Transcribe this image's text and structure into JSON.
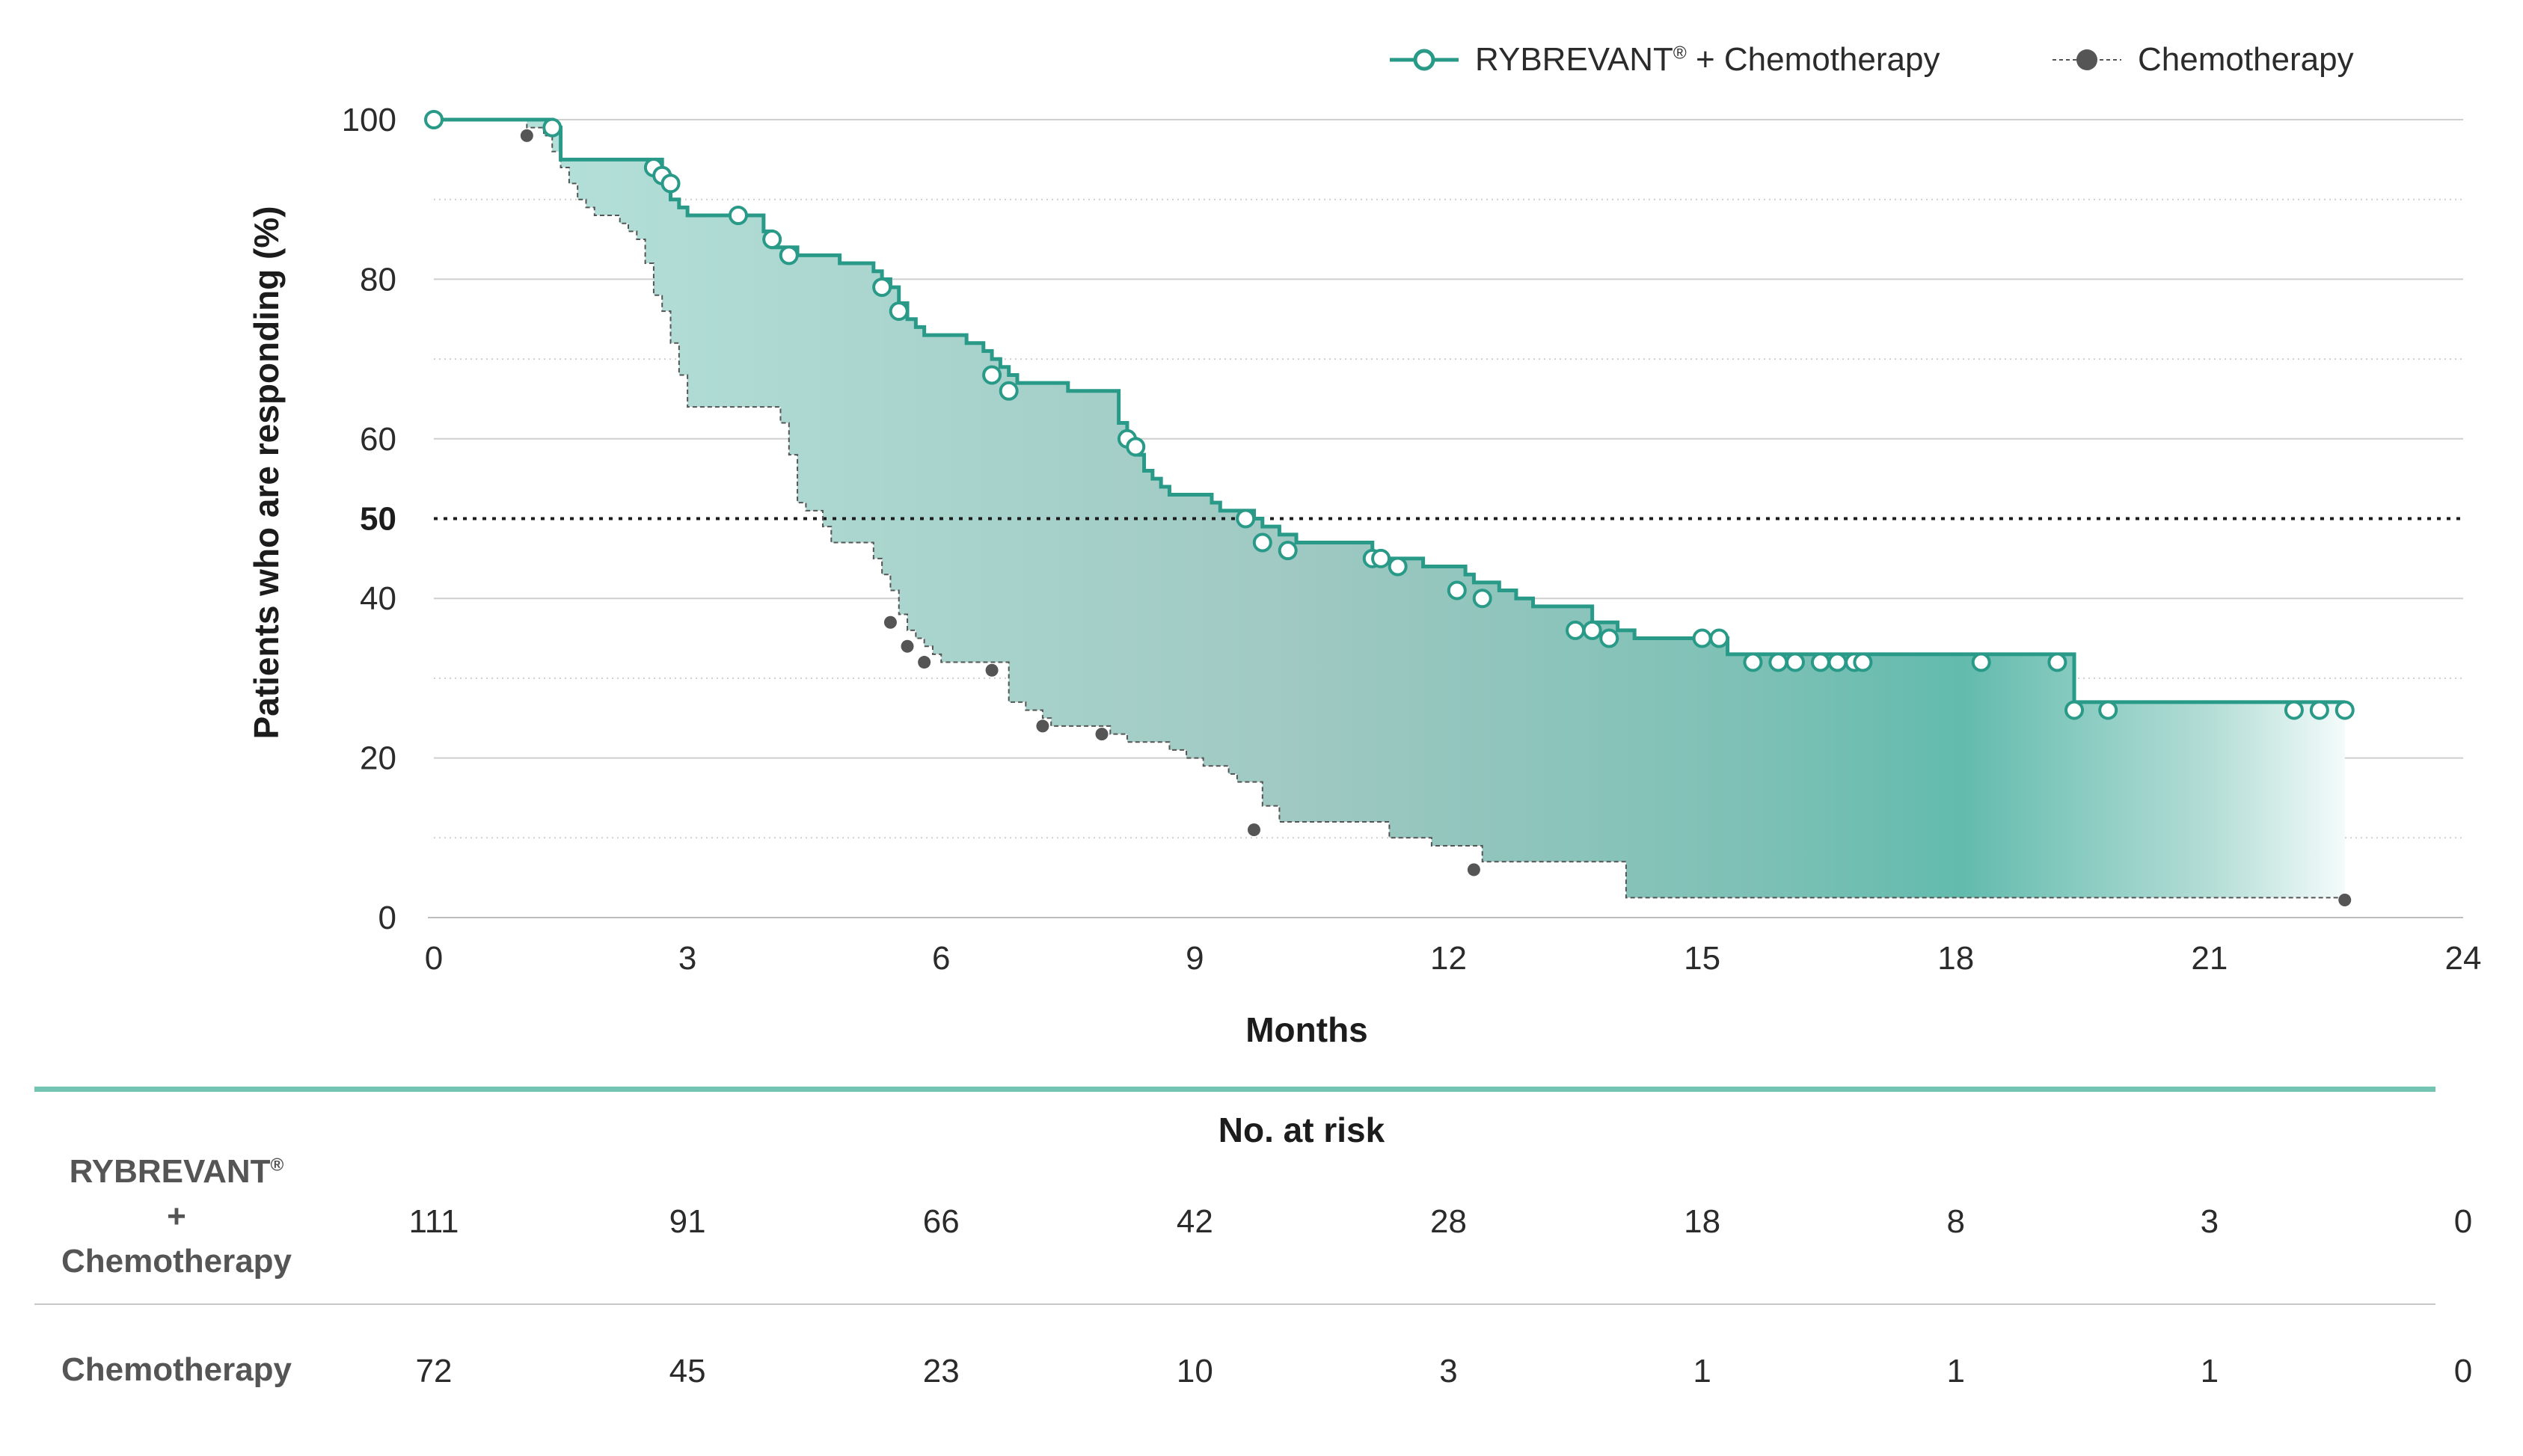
{
  "legend": {
    "ryb_name": "RYBREVANT",
    "ryb_mark": "®",
    "ryb_suffix": " + Chemotherapy",
    "chemo_name": "Chemotherapy"
  },
  "colors": {
    "ryb": "#2a9a88",
    "chemo": "#555555",
    "fill": "#6cc0b2",
    "grid": "#cfcfcf",
    "divider": "#74c4b4"
  },
  "chart_data": {
    "type": "line",
    "subtype": "kaplan-meier",
    "xlabel": "Months",
    "ylabel": "Patients who are responding (%)",
    "xlim": [
      0,
      24
    ],
    "ylim": [
      0,
      100
    ],
    "x_ticks": [
      "0",
      "3",
      "6",
      "9",
      "12",
      "15",
      "18",
      "21",
      "24"
    ],
    "y_ticks": [
      "0",
      "20",
      "40",
      "60",
      "80",
      "100"
    ],
    "y_tick_values": [
      0,
      20,
      40,
      60,
      80,
      100
    ],
    "reference_line": {
      "y": 50,
      "label": "50",
      "style": "dotted"
    },
    "grid": true,
    "legend_position": "top-right",
    "series": [
      {
        "name": "RYBREVANT® + Chemotherapy",
        "steps": [
          [
            0,
            100
          ],
          [
            1.4,
            99
          ],
          [
            1.5,
            95
          ],
          [
            2.5,
            95
          ],
          [
            2.7,
            93
          ],
          [
            2.8,
            90
          ],
          [
            2.9,
            89
          ],
          [
            3.0,
            88
          ],
          [
            3.8,
            88
          ],
          [
            3.9,
            86
          ],
          [
            4.0,
            84
          ],
          [
            4.2,
            84
          ],
          [
            4.3,
            83
          ],
          [
            4.7,
            83
          ],
          [
            4.8,
            82
          ],
          [
            5.1,
            82
          ],
          [
            5.2,
            81
          ],
          [
            5.3,
            80
          ],
          [
            5.4,
            79
          ],
          [
            5.5,
            77
          ],
          [
            5.6,
            75
          ],
          [
            5.7,
            74
          ],
          [
            5.8,
            73
          ],
          [
            6.2,
            73
          ],
          [
            6.3,
            72
          ],
          [
            6.5,
            71
          ],
          [
            6.6,
            70
          ],
          [
            6.7,
            69
          ],
          [
            6.8,
            68
          ],
          [
            6.9,
            67
          ],
          [
            7.4,
            67
          ],
          [
            7.5,
            66
          ],
          [
            8.0,
            66
          ],
          [
            8.1,
            62
          ],
          [
            8.2,
            60
          ],
          [
            8.3,
            58
          ],
          [
            8.4,
            56
          ],
          [
            8.5,
            55
          ],
          [
            8.6,
            54
          ],
          [
            8.7,
            53
          ],
          [
            9.1,
            53
          ],
          [
            9.2,
            52
          ],
          [
            9.3,
            51
          ],
          [
            9.6,
            51
          ],
          [
            9.7,
            50
          ],
          [
            9.8,
            49
          ],
          [
            10.0,
            48
          ],
          [
            10.2,
            47
          ],
          [
            11.0,
            47
          ],
          [
            11.1,
            45
          ],
          [
            11.6,
            45
          ],
          [
            11.7,
            44
          ],
          [
            12.1,
            44
          ],
          [
            12.2,
            43
          ],
          [
            12.3,
            42
          ],
          [
            12.6,
            41
          ],
          [
            12.8,
            40
          ],
          [
            13.0,
            39
          ],
          [
            13.6,
            39
          ],
          [
            13.7,
            37
          ],
          [
            14.0,
            36
          ],
          [
            14.2,
            35
          ],
          [
            15.2,
            35
          ],
          [
            15.3,
            33
          ],
          [
            19.3,
            33
          ],
          [
            19.4,
            27
          ],
          [
            22.6,
            27
          ]
        ],
        "censored": [
          [
            0,
            100
          ],
          [
            1.4,
            99
          ],
          [
            2.6,
            94
          ],
          [
            2.7,
            93
          ],
          [
            2.8,
            92
          ],
          [
            3.6,
            88
          ],
          [
            4.0,
            85
          ],
          [
            4.2,
            83
          ],
          [
            5.3,
            79
          ],
          [
            5.5,
            76
          ],
          [
            6.6,
            68
          ],
          [
            6.8,
            66
          ],
          [
            8.2,
            60
          ],
          [
            8.3,
            59
          ],
          [
            9.6,
            50
          ],
          [
            9.8,
            47
          ],
          [
            10.1,
            46
          ],
          [
            11.1,
            45
          ],
          [
            11.2,
            45
          ],
          [
            11.4,
            44
          ],
          [
            12.1,
            41
          ],
          [
            12.4,
            40
          ],
          [
            13.5,
            36
          ],
          [
            13.7,
            36
          ],
          [
            13.9,
            35
          ],
          [
            15.0,
            35
          ],
          [
            15.2,
            35
          ],
          [
            15.6,
            32
          ],
          [
            15.9,
            32
          ],
          [
            16.1,
            32
          ],
          [
            16.4,
            32
          ],
          [
            16.6,
            32
          ],
          [
            16.8,
            32
          ],
          [
            16.9,
            32
          ],
          [
            18.3,
            32
          ],
          [
            19.2,
            32
          ],
          [
            19.4,
            26
          ],
          [
            19.8,
            26
          ],
          [
            22.0,
            26
          ],
          [
            22.3,
            26
          ],
          [
            22.6,
            26
          ]
        ]
      },
      {
        "name": "Chemotherapy",
        "steps": [
          [
            0,
            100
          ],
          [
            1.1,
            99
          ],
          [
            1.3,
            98
          ],
          [
            1.4,
            96
          ],
          [
            1.5,
            94
          ],
          [
            1.6,
            92
          ],
          [
            1.7,
            90
          ],
          [
            1.8,
            89
          ],
          [
            1.9,
            88
          ],
          [
            2.1,
            88
          ],
          [
            2.2,
            87
          ],
          [
            2.3,
            86
          ],
          [
            2.4,
            85
          ],
          [
            2.5,
            82
          ],
          [
            2.6,
            78
          ],
          [
            2.7,
            76
          ],
          [
            2.8,
            72
          ],
          [
            2.9,
            68
          ],
          [
            3.0,
            64
          ],
          [
            4.0,
            64
          ],
          [
            4.1,
            62
          ],
          [
            4.2,
            58
          ],
          [
            4.3,
            52
          ],
          [
            4.4,
            51
          ],
          [
            4.6,
            49
          ],
          [
            4.7,
            47
          ],
          [
            5.1,
            47
          ],
          [
            5.2,
            45
          ],
          [
            5.3,
            43
          ],
          [
            5.4,
            41
          ],
          [
            5.5,
            38
          ],
          [
            5.6,
            36
          ],
          [
            5.7,
            35
          ],
          [
            5.8,
            34
          ],
          [
            5.9,
            33
          ],
          [
            6.0,
            32
          ],
          [
            6.7,
            32
          ],
          [
            6.8,
            27
          ],
          [
            7.0,
            26
          ],
          [
            7.2,
            25
          ],
          [
            7.3,
            24
          ],
          [
            7.9,
            24
          ],
          [
            8.0,
            23
          ],
          [
            8.2,
            22
          ],
          [
            8.6,
            22
          ],
          [
            8.7,
            21
          ],
          [
            8.9,
            20
          ],
          [
            9.1,
            19
          ],
          [
            9.4,
            18
          ],
          [
            9.5,
            17
          ],
          [
            9.8,
            14
          ],
          [
            10.0,
            12
          ],
          [
            11.2,
            12
          ],
          [
            11.3,
            10
          ],
          [
            11.7,
            10
          ],
          [
            11.8,
            9
          ],
          [
            12.3,
            9
          ],
          [
            12.4,
            7
          ],
          [
            14.0,
            7
          ],
          [
            14.1,
            2.5
          ],
          [
            22.6,
            2.5
          ]
        ],
        "censored": [
          [
            1.1,
            98
          ],
          [
            5.4,
            37
          ],
          [
            5.6,
            34
          ],
          [
            5.8,
            32
          ],
          [
            6.6,
            31
          ],
          [
            7.2,
            24
          ],
          [
            7.9,
            23
          ],
          [
            9.7,
            11
          ],
          [
            12.3,
            6
          ],
          [
            22.6,
            2.2
          ]
        ]
      }
    ]
  },
  "risk_table": {
    "title": "No. at risk",
    "rows": [
      {
        "label_line1": "RYBREVANT",
        "label_mark": "®",
        "label_line2": "+",
        "label_line3": "Chemotherapy",
        "values": [
          "111",
          "91",
          "66",
          "42",
          "28",
          "18",
          "8",
          "3",
          "0"
        ]
      },
      {
        "label": "Chemotherapy",
        "values": [
          "72",
          "45",
          "23",
          "10",
          "3",
          "1",
          "1",
          "1",
          "0"
        ]
      }
    ]
  }
}
